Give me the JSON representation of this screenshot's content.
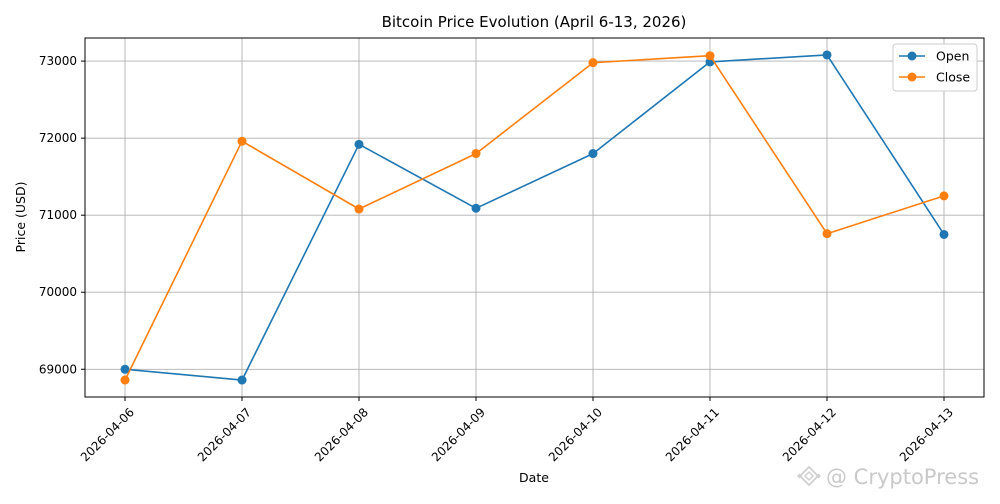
{
  "chart_data": {
    "type": "line",
    "title": "Bitcoin Price Evolution (April 6-13, 2026)",
    "xlabel": "Date",
    "ylabel": "Price (USD)",
    "categories": [
      "2026-04-06",
      "2026-04-07",
      "2026-04-08",
      "2026-04-09",
      "2026-04-10",
      "2026-04-11",
      "2026-04-12",
      "2026-04-13"
    ],
    "series": [
      {
        "name": "Open",
        "color": "#1f77b4",
        "values": [
          69000,
          68860,
          71920,
          71090,
          71800,
          72990,
          73080,
          70750
        ]
      },
      {
        "name": "Close",
        "color": "#ff7f0e",
        "values": [
          68860,
          71960,
          71080,
          71800,
          72980,
          73070,
          70760,
          71250
        ]
      }
    ],
    "yticks": [
      69000,
      70000,
      71000,
      72000,
      73000
    ],
    "ylim": [
      68640,
      73300
    ],
    "grid": true,
    "legend_position": "top-right",
    "marker": "circle"
  },
  "watermark": {
    "text": "@ CryptoPress",
    "icon": "binance-diamond-icon"
  }
}
